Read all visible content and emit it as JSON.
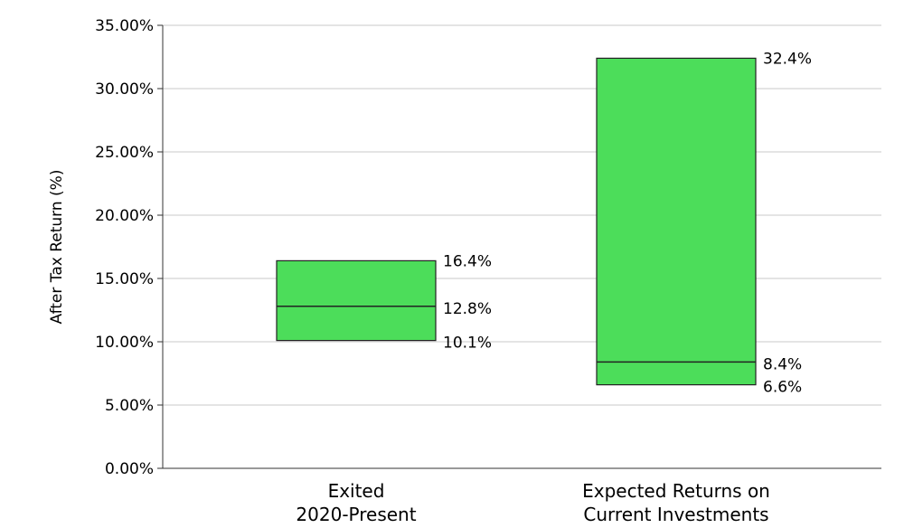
{
  "chart_data": {
    "type": "bar",
    "subtype": "range",
    "ylabel": "After Tax Return (%)",
    "ylim": [
      0,
      35
    ],
    "yticks": [
      0,
      5,
      10,
      15,
      20,
      25,
      30,
      35
    ],
    "ytick_labels": [
      "0.00%",
      "5.00%",
      "10.00%",
      "15.00%",
      "20.00%",
      "25.00%",
      "30.00%",
      "35.00%"
    ],
    "grid": true,
    "bar_color": "#4cdd5a",
    "categories": [
      {
        "lines": [
          "Exited",
          "2020-Present"
        ]
      },
      {
        "lines": [
          "Expected Returns on",
          "Current Investments"
        ]
      }
    ],
    "ranges": [
      {
        "low": 10.1,
        "mid": 12.8,
        "high": 16.4,
        "low_label": "10.1%",
        "mid_label": "12.8%",
        "high_label": "16.4%"
      },
      {
        "low": 6.6,
        "mid": 8.4,
        "high": 32.4,
        "low_label": "6.6%",
        "mid_label": "8.4%",
        "high_label": "32.4%"
      }
    ]
  }
}
